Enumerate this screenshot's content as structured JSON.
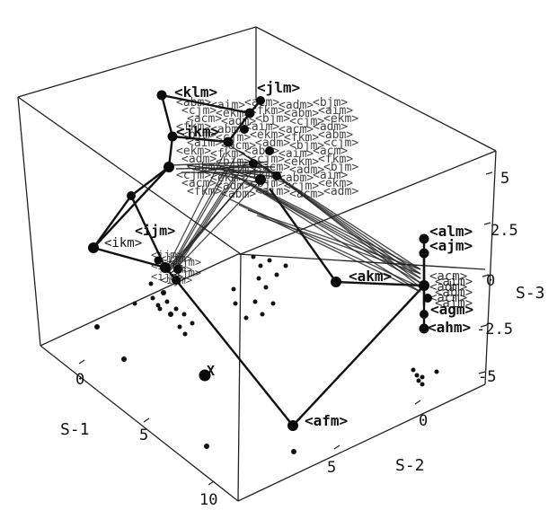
{
  "chart_data": {
    "type": "scatter3d",
    "axes": {
      "x": {
        "label": "S-1",
        "ticks": [
          "0",
          "5",
          "10"
        ]
      },
      "y": {
        "label": "S-2",
        "ticks": [
          "0",
          "5"
        ]
      },
      "z": {
        "label": "S-3",
        "ticks": [
          "5",
          "2.5",
          "0",
          "-2.5",
          "-5"
        ]
      }
    },
    "labeled_points": [
      "<klm>",
      "<jlm>",
      "<jkm>",
      "<ijm>",
      "<akm>",
      "<alm>",
      "<ajm>",
      "<agm>",
      "<ahm>",
      "<afm>",
      "X"
    ],
    "box": "wireframe cube",
    "grid": false,
    "legend": "none"
  }
}
